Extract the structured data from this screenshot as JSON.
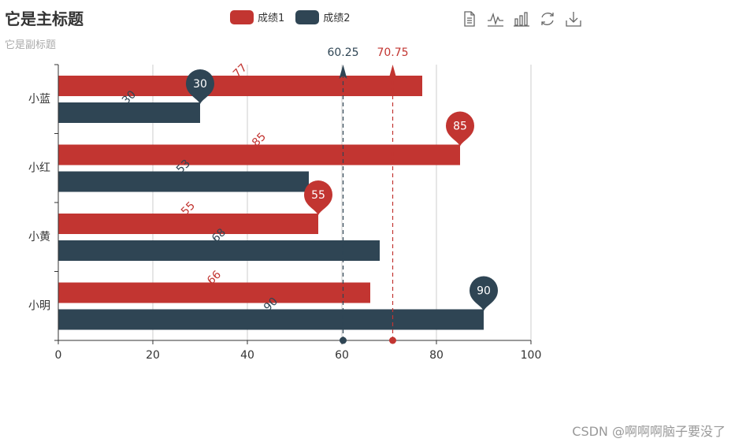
{
  "title": "它是主标题",
  "subtitle": "它是副标题",
  "legend": [
    {
      "name": "成绩1",
      "color": "#c23531"
    },
    {
      "name": "成绩2",
      "color": "#2f4554"
    }
  ],
  "toolbox": [
    {
      "name": "data-view"
    },
    {
      "name": "line-chart"
    },
    {
      "name": "bar-chart"
    },
    {
      "name": "restore"
    },
    {
      "name": "save-image"
    }
  ],
  "chart_data": {
    "type": "bar",
    "orientation": "horizontal",
    "categories": [
      "小明",
      "小黄",
      "小红",
      "小蓝"
    ],
    "series": [
      {
        "name": "成绩1",
        "color": "#c23531",
        "values": [
          66,
          55,
          85,
          77
        ],
        "mark_point_max": {
          "category": "小红",
          "value": 85
        },
        "mark_point_min": {
          "category": "小黄",
          "value": 55
        },
        "mark_line_average": {
          "value": 70.75,
          "label": "70.75"
        }
      },
      {
        "name": "成绩2",
        "color": "#2f4554",
        "values": [
          90,
          68,
          53,
          30
        ],
        "mark_point_max": {
          "category": "小明",
          "value": 90
        },
        "mark_point_min": {
          "category": "小蓝",
          "value": 30
        },
        "mark_line_average": {
          "value": 60.25,
          "label": "60.25"
        }
      }
    ],
    "x_ticks": [
      0,
      20,
      40,
      60,
      80,
      100
    ],
    "xlim": [
      0,
      100
    ],
    "grid": "vertical",
    "label_rotate": 45
  },
  "watermark": "CSDN @啊啊啊脑子要没了"
}
